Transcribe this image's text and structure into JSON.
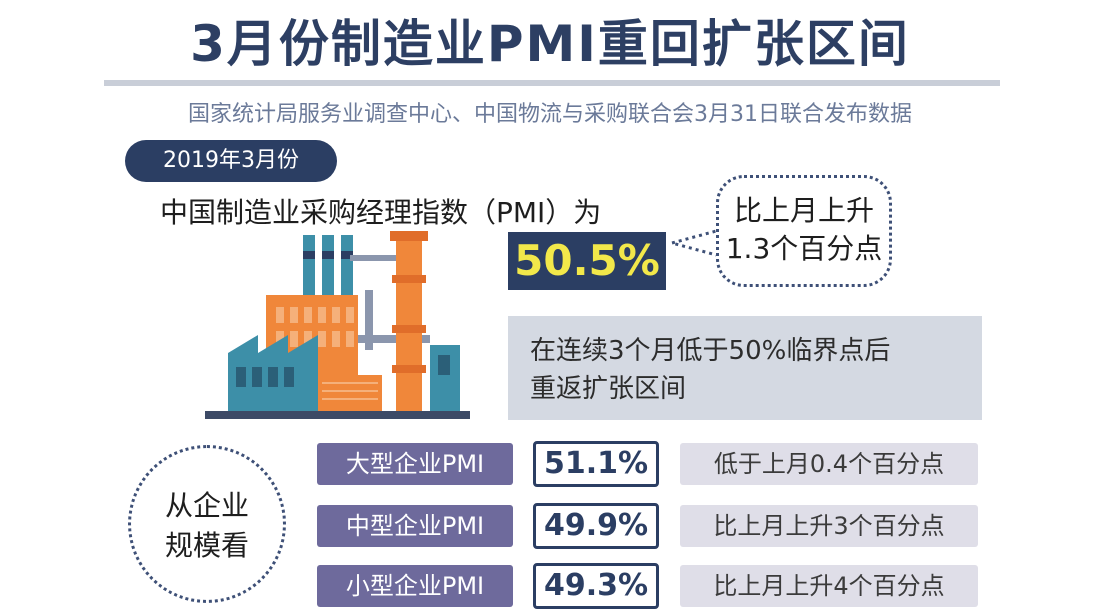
{
  "title": "3月份制造业PMI重回扩张区间",
  "subtitle": "国家统计局服务业调查中心、中国物流与采购联合会3月31日联合发布数据",
  "date_badge": "2019年3月份",
  "pmi": {
    "label": "中国制造业采购经理指数（PMI）为",
    "value": "50.5%",
    "change_line1": "比上月上升",
    "change_line2": "1.3个百分点",
    "context_line1": "在连续3个月低于50%临界点后",
    "context_line2": "重返扩张区间"
  },
  "scale": {
    "line1": "从企业",
    "line2": "规模看",
    "rows": [
      {
        "label": "大型企业PMI",
        "value": "51.1%",
        "change": "低于上月0.4个百分点"
      },
      {
        "label": "中型企业PMI",
        "value": "49.9%",
        "change": "比上月上升3个百分点"
      },
      {
        "label": "小型企业PMI",
        "value": "49.3%",
        "change": "比上月上升4个百分点"
      }
    ]
  },
  "colors": {
    "navy": "#2b3e63",
    "highlight": "#f2e84a",
    "purple": "#6e6a9c",
    "orange": "#f0873a",
    "teal": "#3d8fa8"
  },
  "icons": {
    "factory": "factory-icon"
  }
}
